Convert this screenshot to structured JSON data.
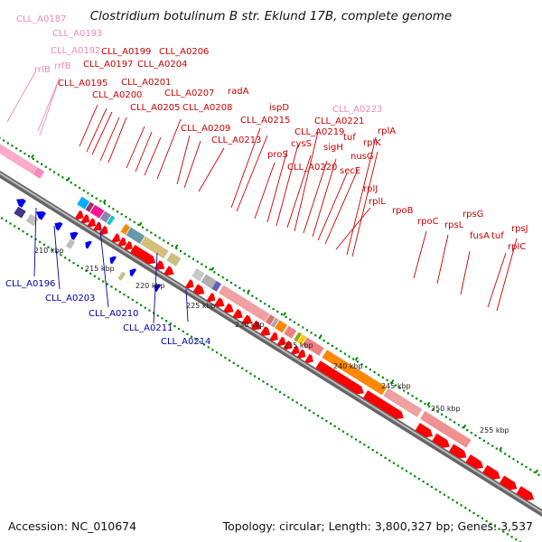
{
  "title": "Clostridium botulinum B str. Eklund 17B, complete genome",
  "footer": {
    "accession": "Accession: NC_010674",
    "summary": "Topology: circular; Length: 3,800,327 bp; Genes: 3,537"
  },
  "colors": {
    "forward_label": "#cc0000",
    "reverse_label": "#0000aa",
    "rna_label": "#ee88bb",
    "backbone": "#888888",
    "tick": "#008800"
  },
  "ruler": {
    "unit": "kbp",
    "ticks": [
      "210 kbp",
      "215 kbp",
      "220 kbp",
      "225 kbp",
      "230 kbp",
      "235 kbp",
      "240 kbp",
      "245 kbp",
      "250 kbp",
      "255 kbp"
    ]
  },
  "forward_labels": [
    "CLL_A0187",
    "CLL_A0193",
    "CLL_A0192",
    "rrlB",
    "rrfB",
    "CLL_A0199",
    "CLL_A0206",
    "CLL_A0197",
    "CLL_A0204",
    "CLL_A0195",
    "CLL_A0201",
    "CLL_A0200",
    "radA",
    "CLL_A0207",
    "CLL_A0205",
    "CLL_A0208",
    "ispD",
    "CLL_A0223",
    "CLL_A0215",
    "CLL_A0209",
    "CLL_A0221",
    "CLL_A0213",
    "CLL_A0219",
    "rplA",
    "cysS",
    "tuf",
    "rplK",
    "proS",
    "sigH",
    "nusG",
    "CLL_A0220",
    "secE",
    "rplJ",
    "rplL",
    "rpoB",
    "rpoC",
    "rpsG",
    "rpsL",
    "fusA",
    "rpsJ",
    "tuf",
    "rplC"
  ],
  "reverse_labels": [
    "CLL_A0196",
    "CLL_A0203",
    "CLL_A0210",
    "CLL_A0211",
    "CLL_A0214"
  ]
}
